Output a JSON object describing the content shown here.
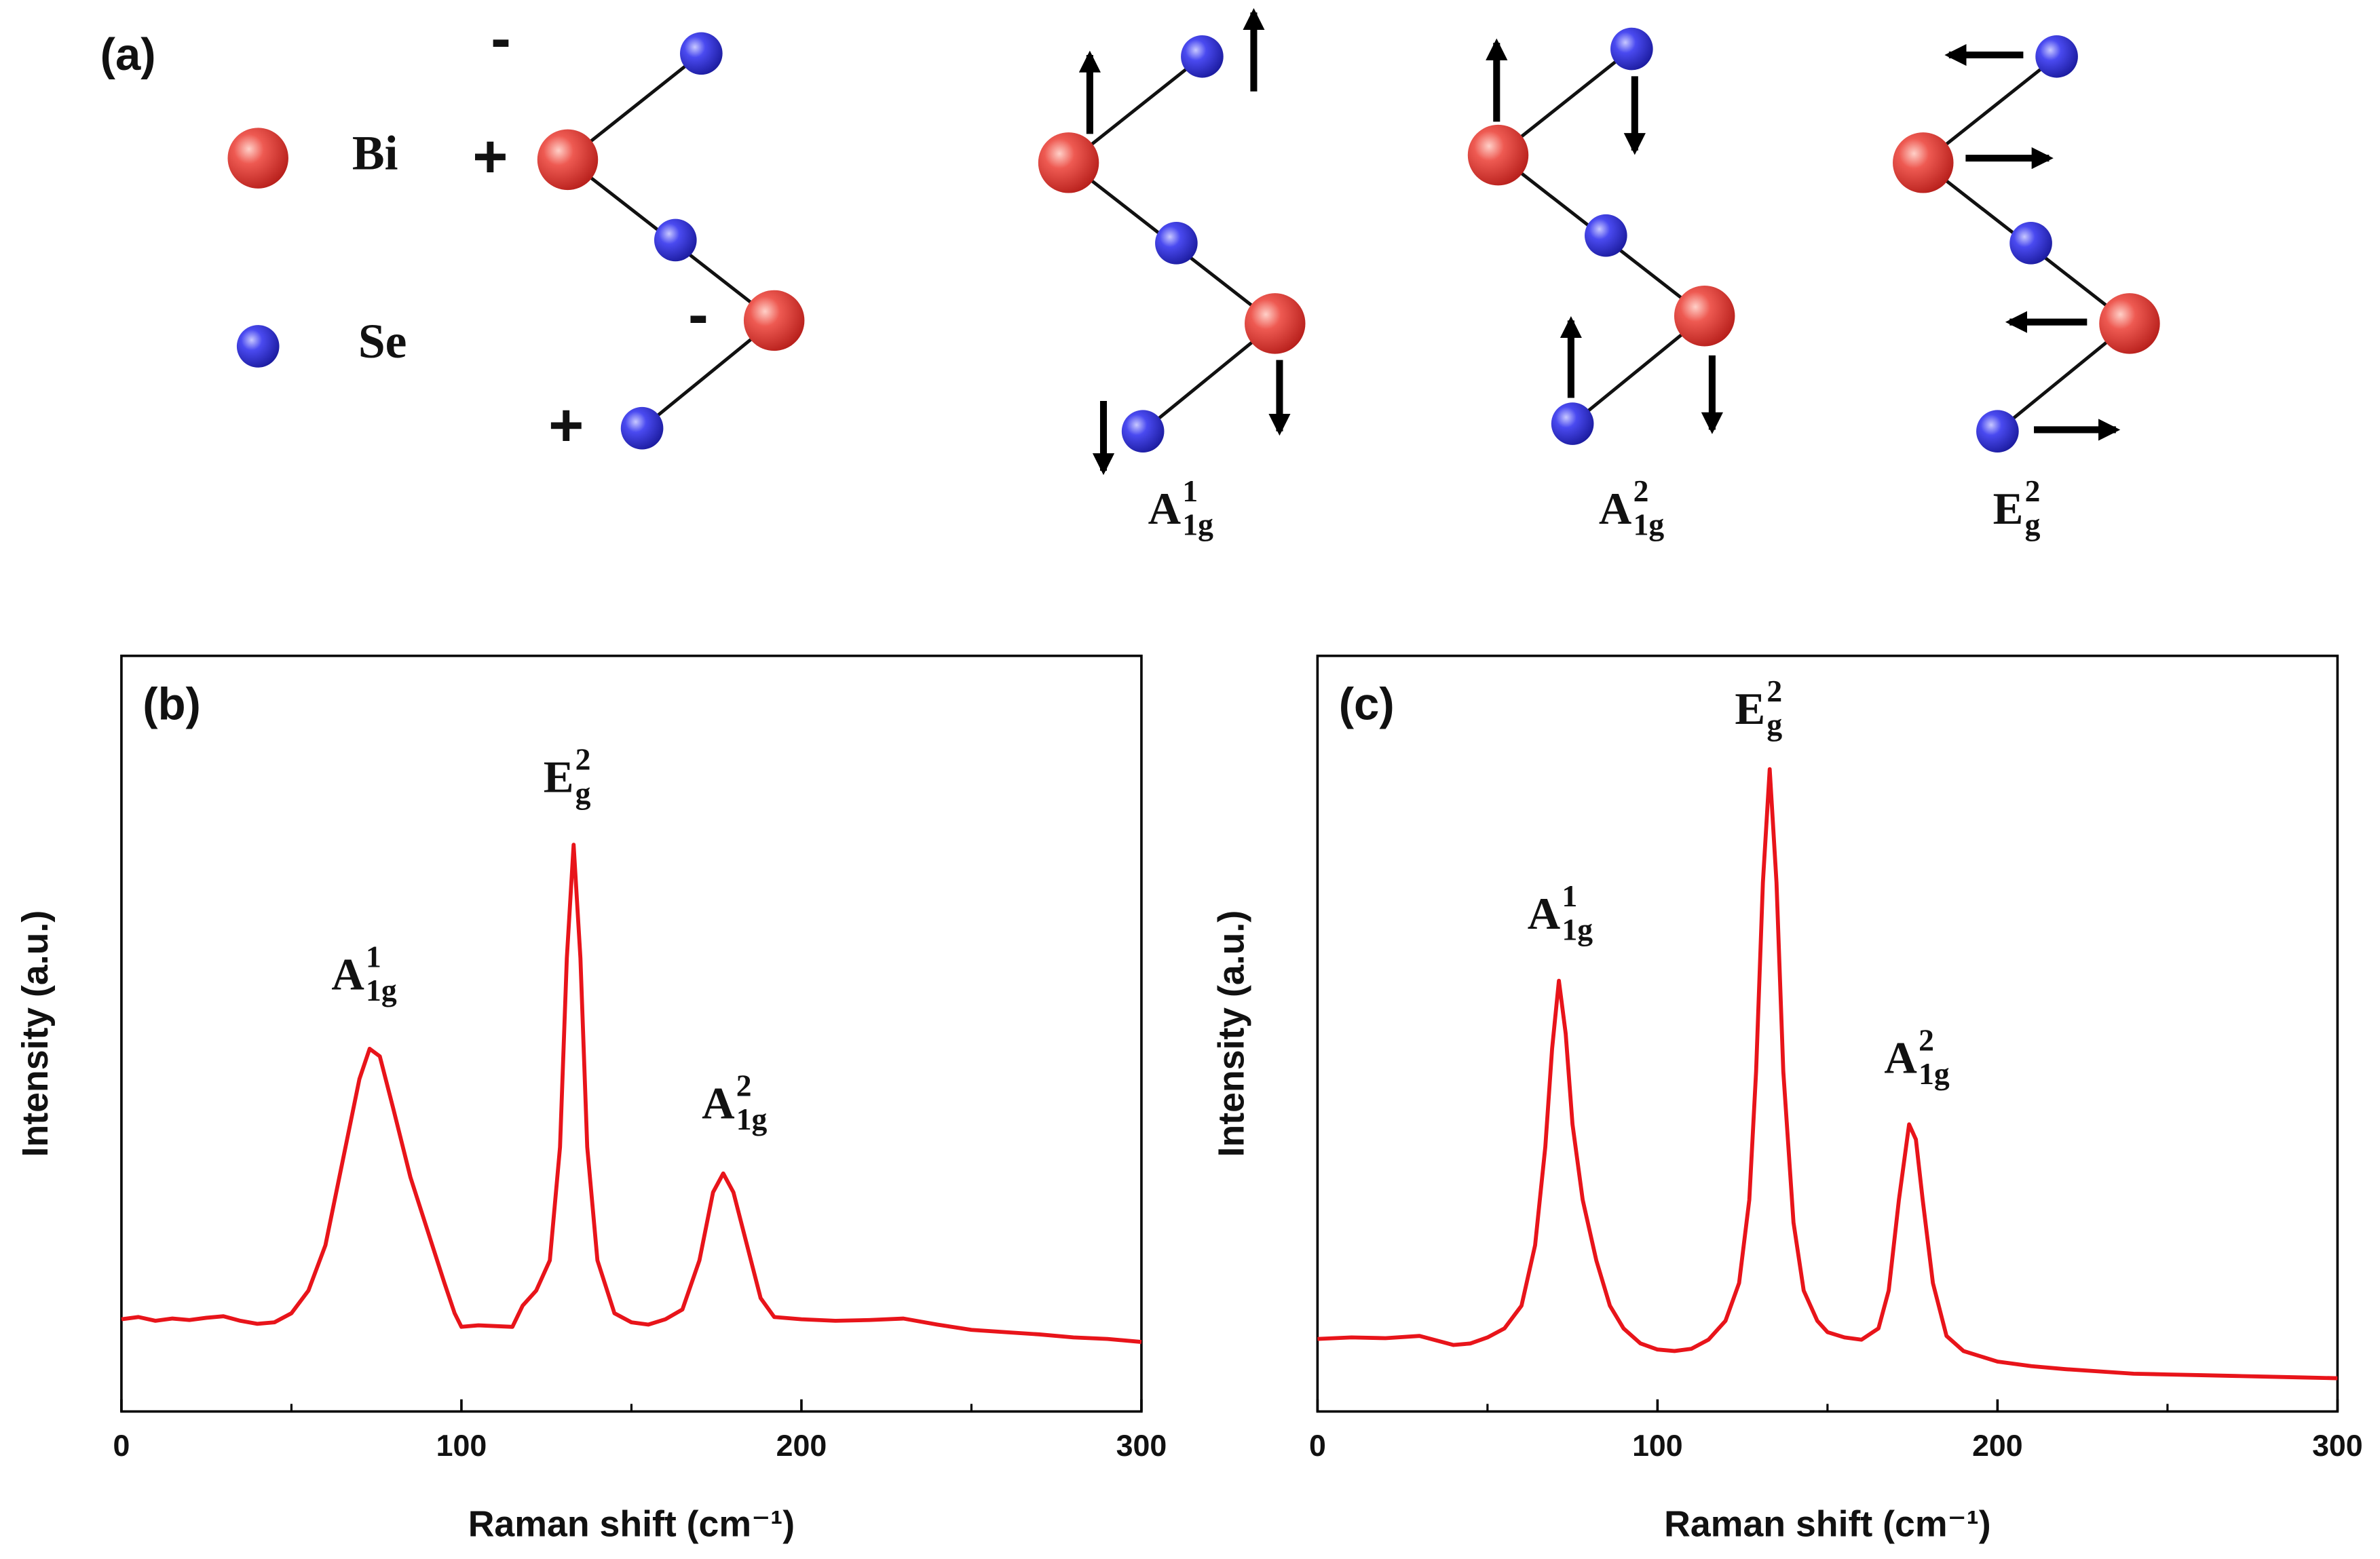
{
  "diagram": {
    "label": "(a)",
    "legend": [
      "Bi",
      "Se"
    ],
    "charges": [
      "-",
      "+",
      "-",
      "+"
    ],
    "modes": [
      {
        "base": "A",
        "sup": "1",
        "sub": "1g"
      },
      {
        "base": "A",
        "sup": "2",
        "sub": "1g"
      },
      {
        "base": "E",
        "sup": "2",
        "sub": "g"
      }
    ]
  },
  "chart_data": [
    {
      "type": "line",
      "panel_label": "(b)",
      "x_label": "Raman shift (cm⁻¹)",
      "y_label": "Intensity (a.u.)",
      "color": "#e8141a",
      "xlim": [
        0,
        300
      ],
      "xticks": [
        0,
        100,
        200,
        300
      ],
      "xminorticks": [
        50,
        150,
        250
      ],
      "ylim": [
        0,
        100
      ],
      "x": [
        0,
        5,
        10,
        15,
        20,
        25,
        30,
        35,
        40,
        45,
        50,
        55,
        60,
        65,
        70,
        73,
        76,
        80,
        85,
        90,
        95,
        98,
        100,
        105,
        110,
        115,
        118,
        122,
        126,
        129,
        131,
        133,
        135,
        137,
        140,
        145,
        150,
        155,
        160,
        165,
        170,
        174,
        177,
        180,
        184,
        188,
        192,
        200,
        210,
        220,
        230,
        240,
        250,
        260,
        270,
        280,
        290,
        300
      ],
      "values": [
        12.2,
        12.5,
        12.0,
        12.3,
        12.1,
        12.4,
        12.6,
        12.0,
        11.6,
        11.8,
        13,
        16,
        22,
        33,
        44,
        48,
        47,
        40,
        31,
        24,
        17,
        13,
        11.2,
        11.4,
        11.3,
        11.2,
        14,
        16,
        20,
        35,
        60,
        75,
        60,
        35,
        20,
        13,
        11.8,
        11.5,
        12.2,
        13.5,
        20,
        29,
        31.5,
        29,
        22,
        15,
        12.5,
        12.2,
        12.0,
        12.1,
        12.3,
        11.5,
        10.8,
        10.5,
        10.2,
        9.8,
        9.6,
        9.2
      ],
      "annotations": [
        {
          "base": "A",
          "sup": "1",
          "sub": "1g"
        },
        {
          "base": "E",
          "sup": "2",
          "sub": "g"
        },
        {
          "base": "A",
          "sup": "2",
          "sub": "1g"
        }
      ]
    },
    {
      "type": "line",
      "panel_label": "(c)",
      "x_label": "Raman shift (cm⁻¹)",
      "y_label": "Intensity (a.u.)",
      "color": "#e8141a",
      "xlim": [
        0,
        300
      ],
      "xticks": [
        0,
        100,
        200,
        300
      ],
      "xminorticks": [
        50,
        150,
        250
      ],
      "ylim": [
        0,
        100
      ],
      "x": [
        0,
        10,
        20,
        30,
        40,
        45,
        50,
        55,
        60,
        64,
        67,
        69,
        71,
        73,
        75,
        78,
        82,
        86,
        90,
        95,
        100,
        105,
        110,
        115,
        120,
        124,
        127,
        129,
        131,
        133,
        135,
        137,
        140,
        143,
        147,
        150,
        155,
        160,
        165,
        168,
        171,
        174,
        176,
        178,
        181,
        185,
        190,
        200,
        210,
        220,
        230,
        240,
        250,
        260,
        270,
        280,
        290,
        300
      ],
      "values": [
        9.6,
        9.8,
        9.7,
        10.0,
        8.8,
        9.0,
        9.8,
        11,
        14,
        22,
        35,
        48,
        57,
        50,
        38,
        28,
        20,
        14,
        11,
        9.0,
        8.2,
        8.0,
        8.3,
        9.5,
        12,
        17,
        28,
        45,
        70,
        85,
        70,
        45,
        25,
        16,
        12,
        10.5,
        9.8,
        9.5,
        11,
        16,
        28,
        38,
        36,
        28,
        17,
        10,
        8.0,
        6.6,
        6.0,
        5.6,
        5.3,
        5.0,
        4.9,
        4.8,
        4.7,
        4.6,
        4.5,
        4.4
      ],
      "annotations": [
        {
          "base": "A",
          "sup": "1",
          "sub": "1g"
        },
        {
          "base": "E",
          "sup": "2",
          "sub": "g"
        },
        {
          "base": "A",
          "sup": "2",
          "sub": "1g"
        }
      ]
    }
  ]
}
